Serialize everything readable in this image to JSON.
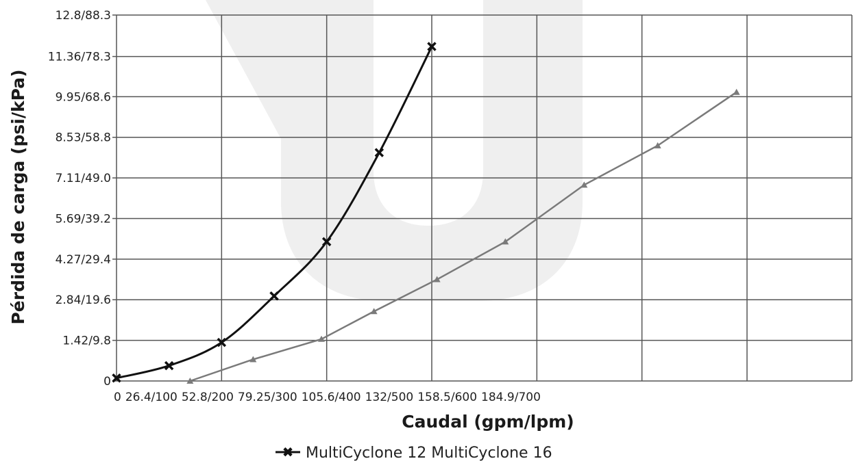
{
  "chart_data": {
    "type": "line",
    "xlabel": "Caudal (gpm/lpm)",
    "ylabel": "Pérdida de carga (psi/kPa)",
    "x_ticks": [
      {
        "value": 0,
        "label": "0"
      },
      {
        "value": 100,
        "label": "26.4/100"
      },
      {
        "value": 200,
        "label": "52.8/200"
      },
      {
        "value": 300,
        "label": "79.25/300"
      },
      {
        "value": 400,
        "label": "105.6/400"
      },
      {
        "value": 500,
        "label": "132/500"
      },
      {
        "value": 600,
        "label": "158.5/600"
      },
      {
        "value": 700,
        "label": "184.9/700"
      }
    ],
    "y_ticks": [
      {
        "value": 0,
        "label": "0"
      },
      {
        "value": 9.8,
        "label": "1.42/9.8"
      },
      {
        "value": 19.6,
        "label": "2.84/19.6"
      },
      {
        "value": 29.4,
        "label": "4.27/29.4"
      },
      {
        "value": 39.2,
        "label": "5.69/39.2"
      },
      {
        "value": 49.0,
        "label": "7.11/49.0"
      },
      {
        "value": 58.8,
        "label": "8.53/58.8"
      },
      {
        "value": 68.6,
        "label": "9.95/68.6"
      },
      {
        "value": 78.3,
        "label": "11.36/78.3"
      },
      {
        "value": 88.3,
        "label": "12.8/88.3"
      }
    ],
    "xlim": [
      0,
      600
    ],
    "ylim": [
      0,
      88.3
    ],
    "grid": true,
    "legend": "bottom",
    "legend_text": "MultiCyclone 12 MultiCyclone 16",
    "series": [
      {
        "name": "MultiCyclone 12",
        "color": "#111111",
        "marker": "x",
        "points": [
          [
            0,
            0.7
          ],
          [
            50,
            3.7
          ],
          [
            100,
            9.3
          ],
          [
            150,
            20.5
          ],
          [
            200,
            33.6
          ],
          [
            250,
            55.1
          ],
          [
            300,
            80.7
          ]
        ]
      },
      {
        "name": "MultiCyclone 16",
        "color": "#7a7a7a",
        "marker": "triangle",
        "points": [
          [
            70,
            0
          ],
          [
            130,
            5.2
          ],
          [
            195,
            10.1
          ],
          [
            245,
            16.8
          ],
          [
            305,
            24.5
          ],
          [
            370,
            33.6
          ],
          [
            445,
            47.3
          ],
          [
            515,
            56.8
          ],
          [
            590,
            69.7
          ]
        ]
      }
    ]
  }
}
